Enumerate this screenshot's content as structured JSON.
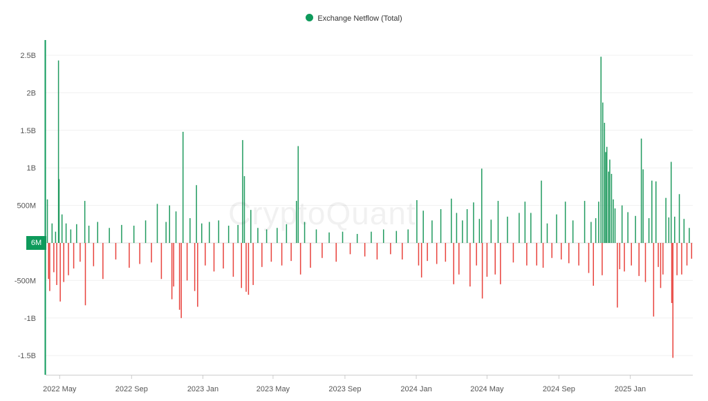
{
  "legend": {
    "label": "Exchange Netflow (Total)",
    "color": "#0e9a5b"
  },
  "watermark": "CryptoQuant",
  "current_badge": "6M",
  "colors": {
    "positive": "#1f9a5e",
    "negative": "#e8413b",
    "axis": "#0e9a5b",
    "grid": "#f0f0f0"
  },
  "chart_data": {
    "type": "bar",
    "title": "",
    "series": [
      {
        "name": "Exchange Netflow (Total)"
      }
    ],
    "ylim": [
      -1700000000,
      2700000000
    ],
    "ylabel": "",
    "y_ticks": [
      {
        "value": 2500000000,
        "label": "2.5B"
      },
      {
        "value": 2000000000,
        "label": "2B"
      },
      {
        "value": 1500000000,
        "label": "1.5B"
      },
      {
        "value": 1000000000,
        "label": "1B"
      },
      {
        "value": 500000000,
        "label": "500M"
      },
      {
        "value": -500000000,
        "label": "-500M"
      },
      {
        "value": -1000000000,
        "label": "-1B"
      },
      {
        "value": -1500000000,
        "label": "-1.5B"
      }
    ],
    "x_range": [
      "2022-04-07",
      "2025-04-18"
    ],
    "x_ticks": [
      {
        "date": "2022-05-01",
        "label": "2022 May"
      },
      {
        "date": "2022-09-01",
        "label": "2022 Sep"
      },
      {
        "date": "2023-01-01",
        "label": "2023 Jan"
      },
      {
        "date": "2023-05-01",
        "label": "2023 May"
      },
      {
        "date": "2023-09-01",
        "label": "2023 Sep"
      },
      {
        "date": "2024-01-01",
        "label": "2024 Jan"
      },
      {
        "date": "2024-05-01",
        "label": "2024 May"
      },
      {
        "date": "2024-09-01",
        "label": "2024 Sep"
      },
      {
        "date": "2025-01-01",
        "label": "2025 Jan"
      }
    ],
    "points": [
      [
        "2022-04-10",
        580000000
      ],
      [
        "2022-04-12",
        -480000000
      ],
      [
        "2022-04-14",
        -640000000
      ],
      [
        "2022-04-18",
        260000000
      ],
      [
        "2022-04-21",
        -390000000
      ],
      [
        "2022-04-24",
        150000000
      ],
      [
        "2022-04-26",
        -560000000
      ],
      [
        "2022-04-29",
        2430000000
      ],
      [
        "2022-04-30",
        850000000
      ],
      [
        "2022-05-02",
        -780000000
      ],
      [
        "2022-05-05",
        380000000
      ],
      [
        "2022-05-08",
        -520000000
      ],
      [
        "2022-05-12",
        260000000
      ],
      [
        "2022-05-16",
        -430000000
      ],
      [
        "2022-05-20",
        180000000
      ],
      [
        "2022-05-25",
        -340000000
      ],
      [
        "2022-05-30",
        250000000
      ],
      [
        "2022-06-05",
        -250000000
      ],
      [
        "2022-06-13",
        560000000
      ],
      [
        "2022-06-14",
        -830000000
      ],
      [
        "2022-06-20",
        230000000
      ],
      [
        "2022-06-28",
        -310000000
      ],
      [
        "2022-07-05",
        280000000
      ],
      [
        "2022-07-14",
        -480000000
      ],
      [
        "2022-07-25",
        200000000
      ],
      [
        "2022-08-05",
        -220000000
      ],
      [
        "2022-08-15",
        240000000
      ],
      [
        "2022-08-28",
        -330000000
      ],
      [
        "2022-09-05",
        230000000
      ],
      [
        "2022-09-15",
        -280000000
      ],
      [
        "2022-09-25",
        300000000
      ],
      [
        "2022-10-05",
        -260000000
      ],
      [
        "2022-10-15",
        520000000
      ],
      [
        "2022-10-22",
        -480000000
      ],
      [
        "2022-10-30",
        280000000
      ],
      [
        "2022-11-05",
        500000000
      ],
      [
        "2022-11-09",
        -750000000
      ],
      [
        "2022-11-12",
        -580000000
      ],
      [
        "2022-11-16",
        420000000
      ],
      [
        "2022-11-22",
        -890000000
      ],
      [
        "2022-11-25",
        -1000000000
      ],
      [
        "2022-11-28",
        1480000000
      ],
      [
        "2022-12-05",
        -500000000
      ],
      [
        "2022-12-10",
        330000000
      ],
      [
        "2022-12-18",
        -640000000
      ],
      [
        "2022-12-21",
        770000000
      ],
      [
        "2022-12-23",
        -850000000
      ],
      [
        "2022-12-30",
        260000000
      ],
      [
        "2023-01-05",
        -300000000
      ],
      [
        "2023-01-12",
        280000000
      ],
      [
        "2023-01-20",
        -380000000
      ],
      [
        "2023-01-28",
        300000000
      ],
      [
        "2023-02-05",
        -340000000
      ],
      [
        "2023-02-14",
        230000000
      ],
      [
        "2023-02-22",
        -450000000
      ],
      [
        "2023-03-02",
        240000000
      ],
      [
        "2023-03-08",
        -600000000
      ],
      [
        "2023-03-10",
        1370000000
      ],
      [
        "2023-03-13",
        890000000
      ],
      [
        "2023-03-16",
        -650000000
      ],
      [
        "2023-03-20",
        -690000000
      ],
      [
        "2023-03-24",
        440000000
      ],
      [
        "2023-03-28",
        -560000000
      ],
      [
        "2023-04-05",
        200000000
      ],
      [
        "2023-04-12",
        -320000000
      ],
      [
        "2023-04-20",
        180000000
      ],
      [
        "2023-04-28",
        -250000000
      ],
      [
        "2023-05-08",
        200000000
      ],
      [
        "2023-05-16",
        -300000000
      ],
      [
        "2023-05-24",
        250000000
      ],
      [
        "2023-06-01",
        -240000000
      ],
      [
        "2023-06-10",
        560000000
      ],
      [
        "2023-06-13",
        1290000000
      ],
      [
        "2023-06-17",
        -420000000
      ],
      [
        "2023-06-24",
        280000000
      ],
      [
        "2023-07-04",
        -330000000
      ],
      [
        "2023-07-14",
        180000000
      ],
      [
        "2023-07-24",
        -200000000
      ],
      [
        "2023-08-05",
        140000000
      ],
      [
        "2023-08-17",
        -250000000
      ],
      [
        "2023-08-28",
        150000000
      ],
      [
        "2023-09-10",
        -150000000
      ],
      [
        "2023-09-22",
        120000000
      ],
      [
        "2023-10-05",
        -180000000
      ],
      [
        "2023-10-16",
        150000000
      ],
      [
        "2023-10-26",
        -220000000
      ],
      [
        "2023-11-06",
        180000000
      ],
      [
        "2023-11-18",
        -150000000
      ],
      [
        "2023-11-28",
        160000000
      ],
      [
        "2023-12-08",
        -220000000
      ],
      [
        "2023-12-18",
        180000000
      ],
      [
        "2024-01-02",
        570000000
      ],
      [
        "2024-01-05",
        -300000000
      ],
      [
        "2024-01-10",
        -460000000
      ],
      [
        "2024-01-13",
        430000000
      ],
      [
        "2024-01-20",
        -240000000
      ],
      [
        "2024-01-28",
        300000000
      ],
      [
        "2024-02-05",
        -280000000
      ],
      [
        "2024-02-12",
        450000000
      ],
      [
        "2024-02-20",
        -250000000
      ],
      [
        "2024-03-01",
        590000000
      ],
      [
        "2024-03-05",
        -550000000
      ],
      [
        "2024-03-10",
        400000000
      ],
      [
        "2024-03-14",
        -420000000
      ],
      [
        "2024-03-20",
        300000000
      ],
      [
        "2024-03-28",
        450000000
      ],
      [
        "2024-04-02",
        -580000000
      ],
      [
        "2024-04-08",
        540000000
      ],
      [
        "2024-04-13",
        -300000000
      ],
      [
        "2024-04-18",
        320000000
      ],
      [
        "2024-04-22",
        990000000
      ],
      [
        "2024-04-23",
        -740000000
      ],
      [
        "2024-05-01",
        -450000000
      ],
      [
        "2024-05-08",
        310000000
      ],
      [
        "2024-05-15",
        -420000000
      ],
      [
        "2024-05-20",
        560000000
      ],
      [
        "2024-05-24",
        -550000000
      ],
      [
        "2024-06-05",
        350000000
      ],
      [
        "2024-06-15",
        -260000000
      ],
      [
        "2024-06-25",
        400000000
      ],
      [
        "2024-07-05",
        550000000
      ],
      [
        "2024-07-08",
        -300000000
      ],
      [
        "2024-07-15",
        400000000
      ],
      [
        "2024-07-25",
        -300000000
      ],
      [
        "2024-08-02",
        830000000
      ],
      [
        "2024-08-05",
        -330000000
      ],
      [
        "2024-08-12",
        260000000
      ],
      [
        "2024-08-20",
        -200000000
      ],
      [
        "2024-08-28",
        380000000
      ],
      [
        "2024-09-05",
        -220000000
      ],
      [
        "2024-09-12",
        550000000
      ],
      [
        "2024-09-18",
        -270000000
      ],
      [
        "2024-09-25",
        300000000
      ],
      [
        "2024-10-05",
        -300000000
      ],
      [
        "2024-10-15",
        560000000
      ],
      [
        "2024-10-22",
        -400000000
      ],
      [
        "2024-10-26",
        280000000
      ],
      [
        "2024-10-30",
        -570000000
      ],
      [
        "2024-11-03",
        330000000
      ],
      [
        "2024-11-08",
        550000000
      ],
      [
        "2024-11-12",
        2480000000
      ],
      [
        "2024-11-14",
        -430000000
      ],
      [
        "2024-11-15",
        1870000000
      ],
      [
        "2024-11-18",
        1600000000
      ],
      [
        "2024-11-20",
        1210000000
      ],
      [
        "2024-11-22",
        1280000000
      ],
      [
        "2024-11-25",
        950000000
      ],
      [
        "2024-11-27",
        1110000000
      ],
      [
        "2024-11-30",
        920000000
      ],
      [
        "2024-12-03",
        580000000
      ],
      [
        "2024-12-06",
        460000000
      ],
      [
        "2024-12-10",
        -860000000
      ],
      [
        "2024-12-14",
        -350000000
      ],
      [
        "2024-12-18",
        500000000
      ],
      [
        "2024-12-22",
        -380000000
      ],
      [
        "2024-12-28",
        410000000
      ],
      [
        "2025-01-03",
        -300000000
      ],
      [
        "2025-01-10",
        360000000
      ],
      [
        "2025-01-16",
        -440000000
      ],
      [
        "2025-01-20",
        1390000000
      ],
      [
        "2025-01-23",
        980000000
      ],
      [
        "2025-01-27",
        -520000000
      ],
      [
        "2025-02-02",
        330000000
      ],
      [
        "2025-02-07",
        830000000
      ],
      [
        "2025-02-10",
        -980000000
      ],
      [
        "2025-02-14",
        820000000
      ],
      [
        "2025-02-18",
        -320000000
      ],
      [
        "2025-02-22",
        -600000000
      ],
      [
        "2025-02-26",
        -420000000
      ],
      [
        "2025-03-03",
        600000000
      ],
      [
        "2025-03-08",
        340000000
      ],
      [
        "2025-03-12",
        1080000000
      ],
      [
        "2025-03-13",
        -800000000
      ],
      [
        "2025-03-15",
        -1530000000
      ],
      [
        "2025-03-18",
        350000000
      ],
      [
        "2025-03-22",
        -430000000
      ],
      [
        "2025-03-26",
        650000000
      ],
      [
        "2025-03-30",
        -420000000
      ],
      [
        "2025-04-03",
        320000000
      ],
      [
        "2025-04-08",
        -300000000
      ],
      [
        "2025-04-12",
        200000000
      ],
      [
        "2025-04-16",
        -210000000
      ]
    ]
  }
}
